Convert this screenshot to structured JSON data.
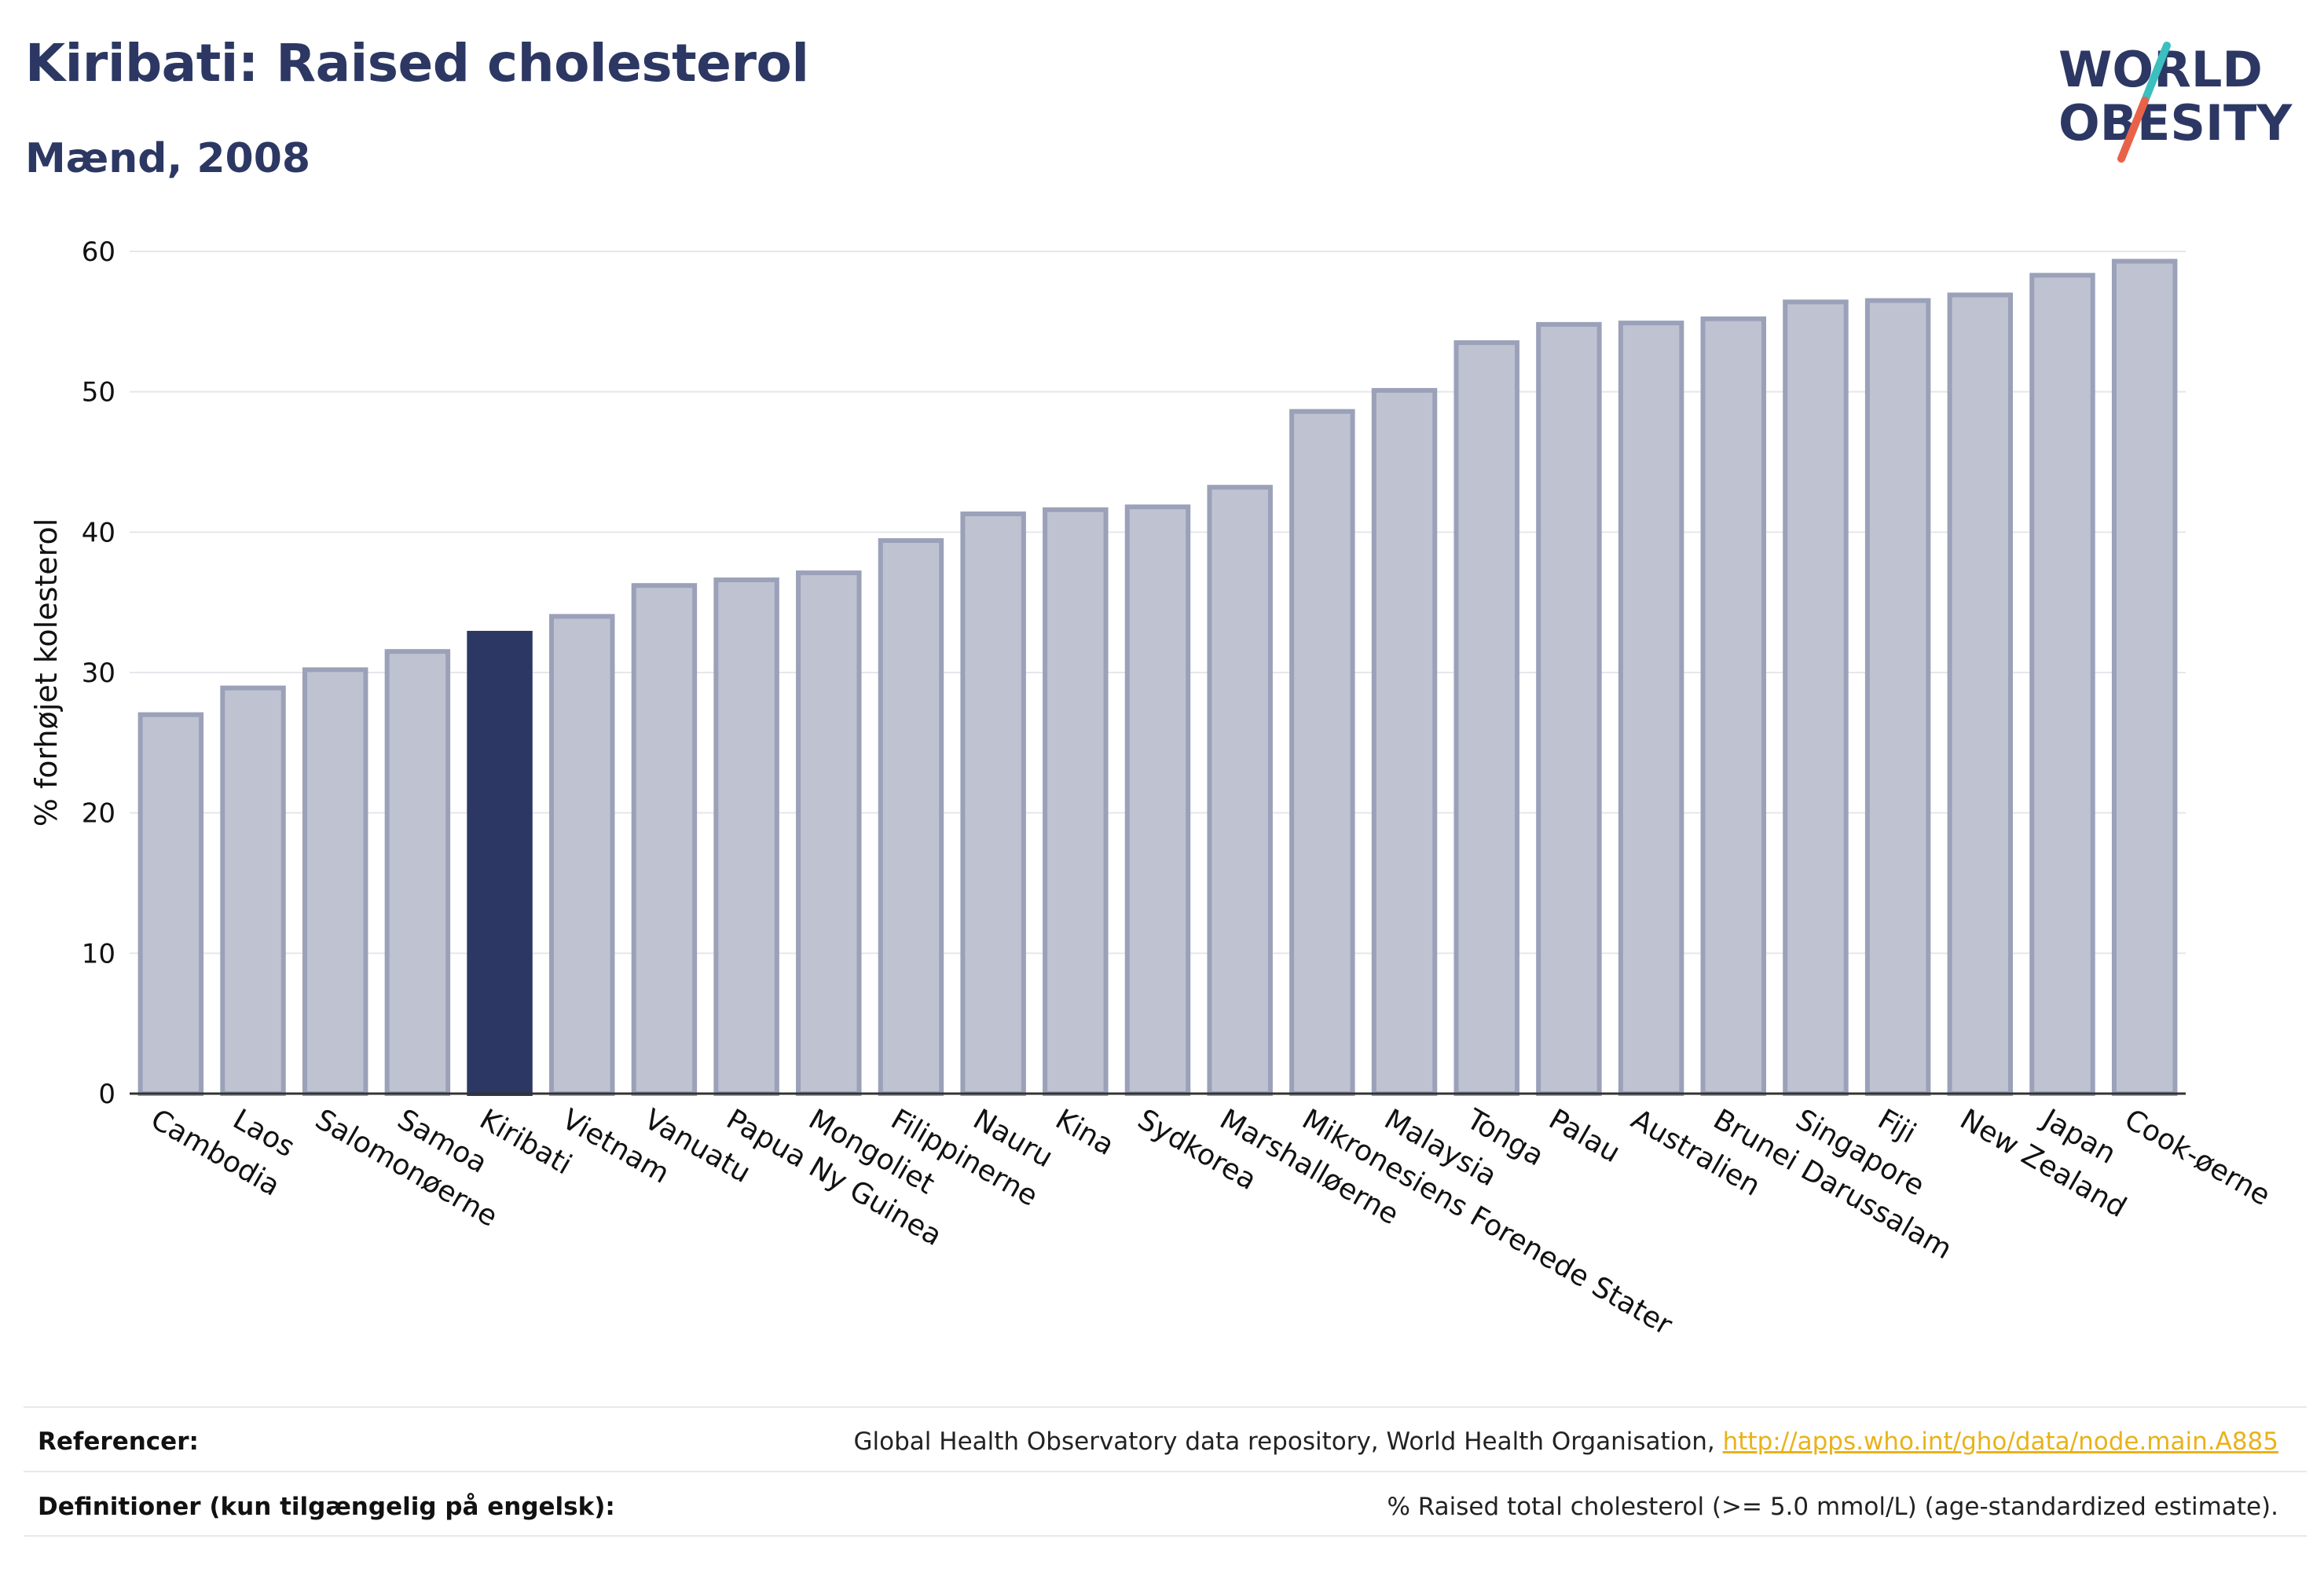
{
  "header": {
    "title": "Kiribati: Raised cholesterol",
    "subtitle": "Mænd, 2008"
  },
  "logo": {
    "line1": "WORLD",
    "line2": "OBESITY",
    "text_color": "#2c3863",
    "slash_colors": [
      "#3bbfbf",
      "#e8624a"
    ]
  },
  "colors": {
    "bar_default": "#bfc3d1",
    "bar_default_border": "#9aa1b8",
    "bar_highlight": "#2c3863",
    "axis_text": "#111111",
    "grid": "#e6e6ec"
  },
  "chart_data": {
    "type": "bar",
    "ylabel": "% forhøjet kolesterol",
    "ylim": [
      0,
      60
    ],
    "yticks": [
      0,
      10,
      20,
      30,
      40,
      50,
      60
    ],
    "grid": true,
    "highlight": "Kiribati",
    "categories": [
      "Cambodia",
      "Laos",
      "Salomonøerne",
      "Samoa",
      "Kiribati",
      "Vietnam",
      "Vanuatu",
      "Papua Ny Guinea",
      "Mongoliet",
      "Filippinerne",
      "Nauru",
      "Kina",
      "Sydkorea",
      "Marshalløerne",
      "Mikronesiens Forenede Stater",
      "Malaysia",
      "Tonga",
      "Palau",
      "Australien",
      "Brunei Darussalam",
      "Singapore",
      "Fiji",
      "New Zealand",
      "Japan",
      "Cook-øerne"
    ],
    "values": [
      27.0,
      28.9,
      30.2,
      31.5,
      32.8,
      34.0,
      36.2,
      36.6,
      37.1,
      39.4,
      41.3,
      41.6,
      41.8,
      43.2,
      48.6,
      50.1,
      53.5,
      54.8,
      54.9,
      55.2,
      56.4,
      56.5,
      56.9,
      58.3,
      59.3
    ]
  },
  "footer": {
    "references_label": "Referencer:",
    "references_text": "Global Health Observatory data repository, World Health Organisation, ",
    "references_link": "http://apps.who.int/gho/data/node.main.A885",
    "definitions_label": "Definitioner (kun tilgængelig på engelsk):",
    "definitions_text": "% Raised total cholesterol (>= 5.0 mmol/L) (age-standardized estimate)."
  }
}
